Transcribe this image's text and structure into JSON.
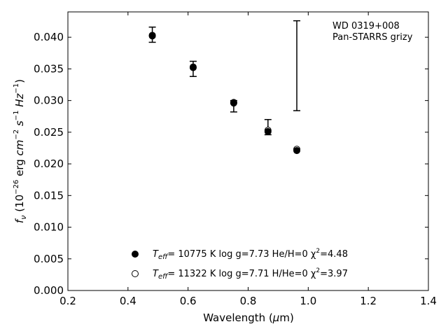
{
  "chart_data": {
    "type": "scatter",
    "xlabel": "Wavelength (μm)",
    "ylabel": "f_ν (10^-26 erg cm^-2 s^-1 Hz^-1)",
    "xlim": [
      0.2,
      1.4
    ],
    "ylim": [
      0.0,
      0.044
    ],
    "x_ticks": [
      "0.2",
      "0.4",
      "0.6",
      "0.8",
      "1.0",
      "1.2",
      "1.4"
    ],
    "y_ticks": [
      "0.000",
      "0.005",
      "0.010",
      "0.015",
      "0.020",
      "0.025",
      "0.030",
      "0.035",
      "0.040"
    ],
    "grid": false,
    "legend_position": "bottom-center",
    "annotations": [
      "WD 0319+008",
      "Pan-STARRS grizy"
    ],
    "observed": {
      "x": [
        0.481,
        0.617,
        0.752,
        0.866,
        0.962
      ],
      "y": [
        0.0404,
        0.035,
        0.0291,
        0.0258,
        0.0355
      ],
      "yerr": [
        0.0012,
        0.0012,
        0.0009,
        0.0012,
        0.0071
      ]
    },
    "series": [
      {
        "name": "T_eff= 10775 K  log g=7.73  He/H=0  χ²=4.48",
        "marker": "filled-circle",
        "x": [
          0.481,
          0.617,
          0.752,
          0.866,
          0.962
        ],
        "y": [
          0.0402,
          0.0352,
          0.0296,
          0.0251,
          0.0221
        ]
      },
      {
        "name": "T_eff= 11322 K  log g=7.71  H/He=0  χ²=3.97",
        "marker": "open-circle",
        "x": [
          0.481,
          0.617,
          0.752,
          0.866,
          0.962
        ],
        "y": [
          0.0403,
          0.0353,
          0.0297,
          0.0253,
          0.0223
        ]
      }
    ]
  },
  "legend": {
    "entry1": {
      "t_sub": "eff",
      "rest": "= 10775 K  log g=7.73  He/H=0  χ",
      "chi_sup": "2",
      "chi_val": "=4.48"
    },
    "entry2": {
      "t_sub": "eff",
      "rest": "= 11322 K  log g=7.71  H/He=0  χ",
      "chi_sup": "2",
      "chi_val": "=3.97"
    }
  },
  "axes_text": {
    "xlabel_main": "Wavelength (",
    "xlabel_mu": "μ",
    "xlabel_end": "m)",
    "ylabel": {
      "f": "f",
      "nu": "ν",
      "open": " (10",
      "exp1": "−26",
      "erg": " erg ",
      "cm": "cm",
      "exp2": "−2",
      "s": " s",
      "exp3": "−1",
      "hz": " Hz",
      "exp4": "−1",
      "close": ")"
    }
  }
}
